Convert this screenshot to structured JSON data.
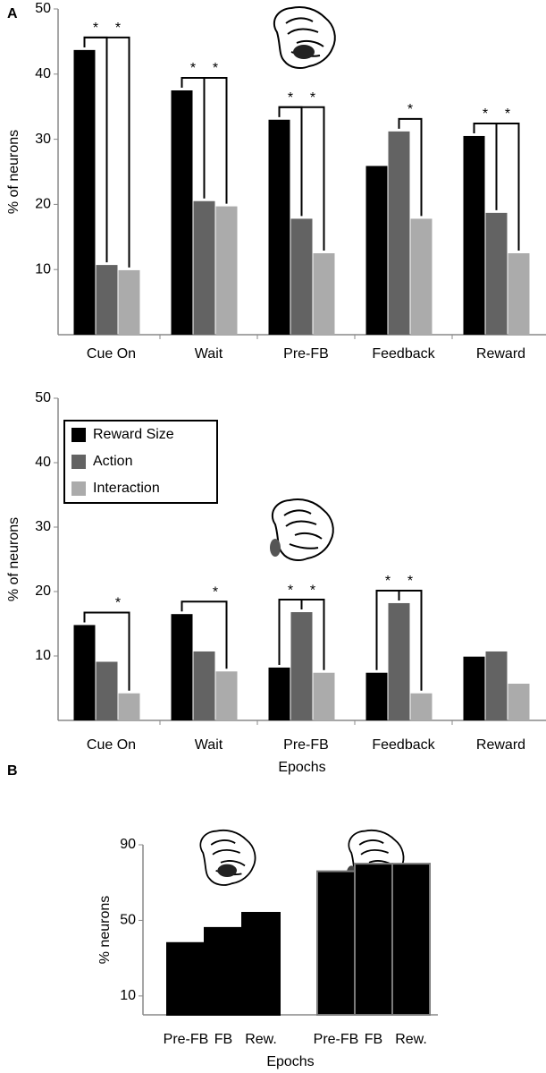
{
  "chart_data": [
    {
      "type": "bar",
      "panel_label": "A",
      "ylabel": "% of neurons",
      "categories": [
        "Cue On",
        "Wait",
        "Pre-FB",
        "Feedback",
        "Reward"
      ],
      "series": [
        {
          "name": "Reward Size",
          "color": "#000000",
          "values": [
            43.7,
            37.5,
            33.0,
            25.9,
            30.5
          ]
        },
        {
          "name": "Action",
          "color": "#636363",
          "values": [
            10.7,
            20.5,
            17.8,
            31.2,
            18.7
          ]
        },
        {
          "name": "Interaction",
          "color": "#ababab",
          "values": [
            9.9,
            19.7,
            12.5,
            17.8,
            12.5
          ]
        }
      ],
      "ylim": [
        0,
        50
      ],
      "yticks": [
        10,
        20,
        30,
        40,
        50
      ],
      "significance": [
        {
          "category": "Cue On",
          "pair": [
            "Reward Size",
            "Action"
          ],
          "label": "*"
        },
        {
          "category": "Cue On",
          "pair": [
            "Reward Size",
            "Interaction"
          ],
          "label": "*"
        },
        {
          "category": "Wait",
          "pair": [
            "Reward Size",
            "Action"
          ],
          "label": "*"
        },
        {
          "category": "Wait",
          "pair": [
            "Reward Size",
            "Interaction"
          ],
          "label": "*"
        },
        {
          "category": "Pre-FB",
          "pair": [
            "Reward Size",
            "Action"
          ],
          "label": "*"
        },
        {
          "category": "Pre-FB",
          "pair": [
            "Reward Size",
            "Interaction"
          ],
          "label": "*"
        },
        {
          "category": "Feedback",
          "pair": [
            "Action",
            "Interaction"
          ],
          "label": "*"
        },
        {
          "category": "Reward",
          "pair": [
            "Reward Size",
            "Action"
          ],
          "label": "*"
        },
        {
          "category": "Reward",
          "pair": [
            "Reward Size",
            "Interaction"
          ],
          "label": "*"
        }
      ]
    },
    {
      "type": "bar",
      "ylabel": "% of neurons",
      "xlabel": "Epochs",
      "legend": "upper left",
      "categories": [
        "Cue On",
        "Wait",
        "Pre-FB",
        "Feedback",
        "Reward"
      ],
      "series": [
        {
          "name": "Reward Size",
          "color": "#000000",
          "values": [
            14.8,
            16.5,
            8.2,
            7.4,
            9.9
          ]
        },
        {
          "name": "Action",
          "color": "#636363",
          "values": [
            9.1,
            10.7,
            16.8,
            18.2,
            10.7
          ]
        },
        {
          "name": "Interaction",
          "color": "#ababab",
          "values": [
            4.2,
            7.6,
            7.4,
            4.2,
            5.7
          ]
        }
      ],
      "ylim": [
        0,
        50
      ],
      "yticks": [
        10,
        20,
        30,
        40,
        50
      ],
      "significance": [
        {
          "category": "Cue On",
          "pair": [
            "Reward Size",
            "Interaction"
          ],
          "label": "*"
        },
        {
          "category": "Wait",
          "pair": [
            "Reward Size",
            "Interaction"
          ],
          "label": "*"
        },
        {
          "category": "Pre-FB",
          "pair": [
            "Action",
            "Reward Size"
          ],
          "label": "*"
        },
        {
          "category": "Pre-FB",
          "pair": [
            "Action",
            "Interaction"
          ],
          "label": "*"
        },
        {
          "category": "Feedback",
          "pair": [
            "Action",
            "Reward Size"
          ],
          "label": "*"
        },
        {
          "category": "Feedback",
          "pair": [
            "Action",
            "Interaction"
          ],
          "label": "*"
        }
      ]
    },
    {
      "type": "bar",
      "panel_label": "B",
      "ylabel": "% neurons",
      "xlabel": "Epochs",
      "groups": [
        {
          "categories": [
            "Pre-FB",
            "FB",
            "Rew."
          ],
          "values": [
            38,
            46,
            54
          ],
          "color": "#000000",
          "edgecolor": "#000000"
        },
        {
          "categories": [
            "Pre-FB",
            "FB",
            "Rew."
          ],
          "values": [
            76,
            80,
            80
          ],
          "color": "#000000",
          "edgecolor": "#7a7a7a"
        }
      ],
      "ylim": [
        0,
        90
      ],
      "yticks": [
        10,
        50,
        90
      ]
    }
  ]
}
